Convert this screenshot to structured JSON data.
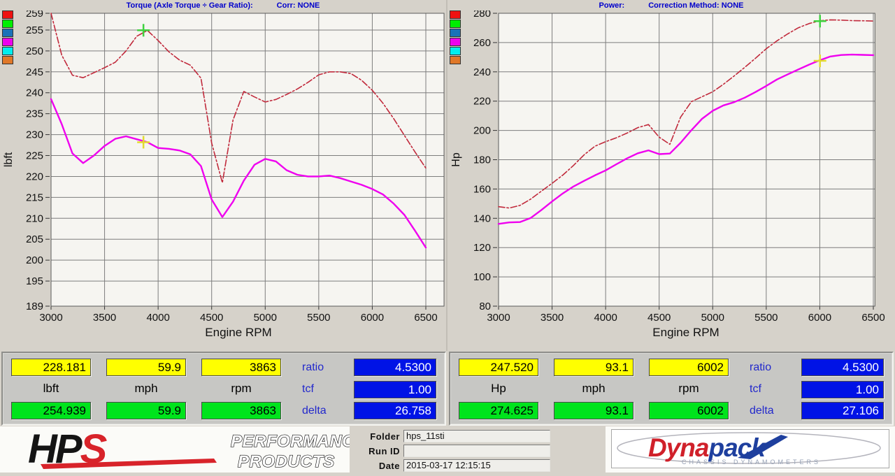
{
  "legend_colors": [
    "#ee1111",
    "#00ee00",
    "#1a72b8",
    "#ee00ee",
    "#00eeee",
    "#e07828"
  ],
  "chart_data": [
    {
      "type": "line",
      "title": "Torque (Axle Torque ÷ Gear Ratio):",
      "corr": "Corr: NONE",
      "xlabel": "Engine RPM",
      "ylabel": "lbft",
      "xlim": [
        3000,
        6670
      ],
      "ylim": [
        189,
        259
      ],
      "x_ticks": [
        3000,
        3500,
        4000,
        4500,
        5000,
        5500,
        6000,
        6500
      ],
      "y_ticks": [
        259,
        255,
        250,
        245,
        240,
        235,
        230,
        225,
        220,
        215,
        210,
        205,
        200,
        195,
        189
      ],
      "grid": true,
      "x": [
        3000,
        3100,
        3200,
        3300,
        3400,
        3500,
        3600,
        3700,
        3800,
        3900,
        4000,
        4100,
        4200,
        4300,
        4400,
        4500,
        4600,
        4700,
        4800,
        4900,
        5000,
        5100,
        5200,
        5300,
        5400,
        5500,
        5600,
        5700,
        5800,
        5900,
        6000,
        6100,
        6200,
        6300,
        6400,
        6500
      ],
      "series": [
        {
          "name": "reference-run-torque",
          "color": "#c12a3c",
          "style": "dashdot",
          "values": [
            259.0,
            249.0,
            244.2,
            243.6,
            244.8,
            246.0,
            247.3,
            250.0,
            253.5,
            254.9,
            252.5,
            249.8,
            247.8,
            246.6,
            243.5,
            228.0,
            218.5,
            233.5,
            240.3,
            239.0,
            237.8,
            238.4,
            239.6,
            240.9,
            242.5,
            244.3,
            245.0,
            245.0,
            244.6,
            243.0,
            240.6,
            237.5,
            233.8,
            229.8,
            225.8,
            222.0
          ]
        },
        {
          "name": "current-run-torque",
          "color": "#ef00ef",
          "style": "solid",
          "values": [
            238.5,
            232.5,
            225.5,
            223.2,
            225.0,
            227.3,
            229.0,
            229.6,
            228.9,
            228.2,
            226.8,
            226.6,
            226.2,
            225.3,
            222.5,
            214.5,
            210.3,
            214.0,
            219.0,
            222.8,
            224.2,
            223.6,
            221.5,
            220.4,
            220.0,
            220.0,
            220.2,
            219.6,
            218.8,
            218.0,
            217.0,
            215.7,
            213.5,
            210.8,
            207.0,
            203.0
          ]
        }
      ],
      "cursors": [
        {
          "name": "current-cursor",
          "color": "#e3db2e",
          "x": 3863,
          "y": 228.181
        },
        {
          "name": "reference-cursor",
          "color": "#3fd23f",
          "x": 3863,
          "y": 254.939
        }
      ]
    },
    {
      "type": "line",
      "title": "Power:",
      "corr": "Correction Method: NONE",
      "xlabel": "Engine RPM",
      "ylabel": "Hp",
      "xlim": [
        3000,
        6515
      ],
      "ylim": [
        80,
        280
      ],
      "x_ticks": [
        3000,
        3500,
        4000,
        4500,
        5000,
        5500,
        6000,
        6500
      ],
      "y_ticks": [
        280,
        260,
        240,
        220,
        200,
        180,
        160,
        140,
        120,
        100,
        80
      ],
      "grid": true,
      "x": [
        3000,
        3100,
        3200,
        3300,
        3400,
        3500,
        3600,
        3700,
        3800,
        3900,
        4000,
        4100,
        4200,
        4300,
        4400,
        4500,
        4600,
        4700,
        4800,
        4900,
        5000,
        5100,
        5200,
        5300,
        5400,
        5500,
        5600,
        5700,
        5800,
        5900,
        6000,
        6100,
        6200,
        6300,
        6400,
        6500
      ],
      "series": [
        {
          "name": "reference-run-power",
          "color": "#c12a3c",
          "style": "dashdot",
          "values": [
            147.9,
            147.0,
            148.8,
            153.1,
            158.5,
            163.9,
            169.5,
            176.1,
            183.4,
            189.2,
            192.3,
            195.0,
            198.2,
            201.9,
            204.0,
            195.4,
            190.5,
            209.0,
            219.6,
            223.0,
            226.4,
            231.5,
            237.2,
            243.1,
            249.3,
            255.8,
            261.2,
            265.9,
            270.1,
            273.0,
            274.9,
            275.5,
            275.3,
            275.0,
            274.9,
            274.7
          ]
        },
        {
          "name": "current-run-power",
          "color": "#ef00ef",
          "style": "solid",
          "values": [
            136.2,
            137.2,
            137.4,
            140.2,
            145.7,
            151.5,
            157.0,
            161.7,
            165.6,
            169.3,
            172.7,
            176.9,
            180.9,
            184.4,
            186.4,
            183.8,
            184.2,
            191.5,
            200.1,
            207.9,
            213.4,
            217.1,
            219.3,
            222.4,
            226.2,
            230.4,
            234.8,
            238.3,
            241.6,
            244.9,
            247.9,
            250.5,
            251.5,
            251.8,
            251.6,
            251.4
          ]
        }
      ],
      "cursors": [
        {
          "name": "current-cursor",
          "color": "#e3db2e",
          "x": 6002,
          "y": 247.52
        },
        {
          "name": "reference-cursor",
          "color": "#3fd23f",
          "x": 6002,
          "y": 274.625
        }
      ]
    }
  ],
  "cursor_tables": [
    {
      "top_values": [
        "228.181",
        "59.9",
        "3863"
      ],
      "units": [
        "lbft",
        "mph",
        "rpm"
      ],
      "bottom_values": [
        "254.939",
        "59.9",
        "3863"
      ],
      "side": [
        {
          "label": "ratio",
          "value": "4.5300"
        },
        {
          "label": "tcf",
          "value": "1.00"
        },
        {
          "label": "delta",
          "value": "26.758"
        }
      ]
    },
    {
      "top_values": [
        "247.520",
        "93.1",
        "6002"
      ],
      "units": [
        "Hp",
        "mph",
        "rpm"
      ],
      "bottom_values": [
        "274.625",
        "93.1",
        "6002"
      ],
      "side": [
        {
          "label": "ratio",
          "value": "4.5300"
        },
        {
          "label": "tcf",
          "value": "1.00"
        },
        {
          "label": "delta",
          "value": "27.106"
        }
      ]
    }
  ],
  "footer": {
    "hps_text_1": "HP",
    "hps_text_2": "S",
    "hps_line1": "PERFORMANCE",
    "hps_line2": "PRODUCTS",
    "fields": [
      {
        "label": "Folder",
        "value": "hps_11sti"
      },
      {
        "label": "Run ID",
        "value": ""
      },
      {
        "label": "Date",
        "value": "2015-03-17 12:15:15"
      }
    ],
    "dynapack_1": "Dyna",
    "dynapack_2": "pack",
    "dynapack_tagline": "CHASSIS   DYNAMOMETERS"
  }
}
